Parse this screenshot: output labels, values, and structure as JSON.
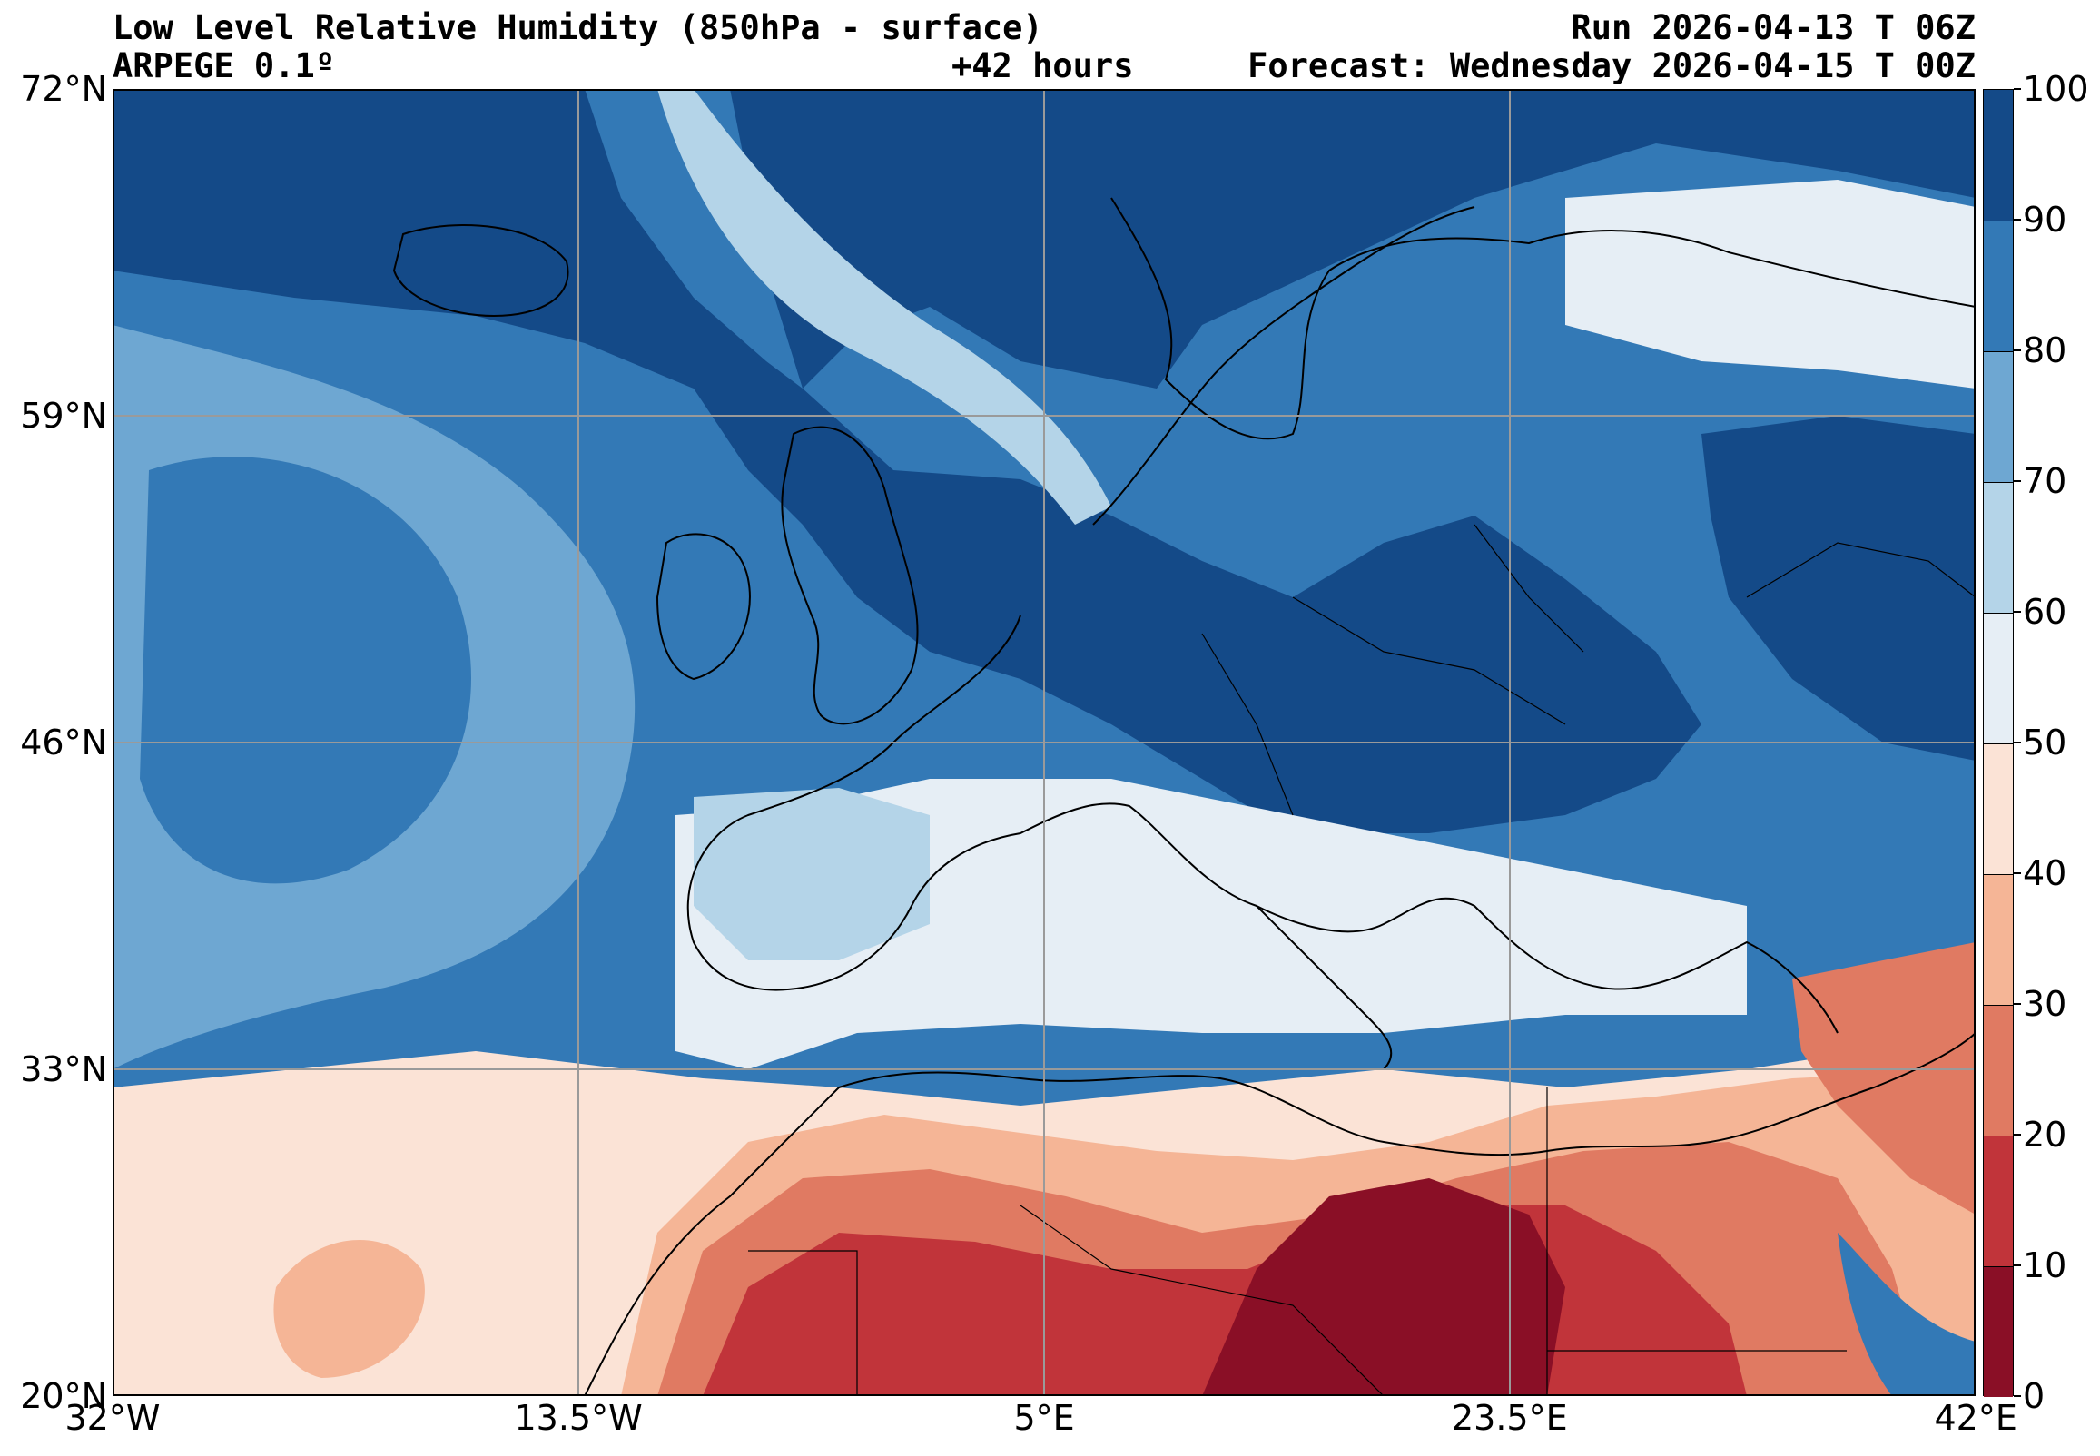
{
  "header": {
    "title_line1": "Low Level Relative Humidity (850hPa - surface)",
    "title_line2": "ARPEGE 0.1º",
    "run": "Run 2026-04-13 T 06Z",
    "lead": "+42 hours",
    "forecast": "Forecast: Wednesday 2026-04-15 T 00Z"
  },
  "axes": {
    "lat_labels": [
      "72°N",
      "59°N",
      "46°N",
      "33°N",
      "20°N"
    ],
    "lon_labels": [
      "32°W",
      "13.5°W",
      "5°E",
      "23.5°E",
      "42°E"
    ],
    "lat_values": [
      72,
      59,
      46,
      33,
      20
    ],
    "lon_values": [
      -32,
      -13.5,
      5,
      23.5,
      42
    ],
    "extent": {
      "lon_min": -32,
      "lon_max": 42,
      "lat_min": 20,
      "lat_max": 72
    },
    "grid": true
  },
  "colorbar": {
    "tick_labels": [
      "0",
      "10",
      "20",
      "30",
      "40",
      "50",
      "60",
      "70",
      "80",
      "90",
      "100"
    ],
    "bins": [
      {
        "min": 0,
        "max": 10,
        "color": "#8a0f26"
      },
      {
        "min": 10,
        "max": 20,
        "color": "#c1343a"
      },
      {
        "min": 20,
        "max": 30,
        "color": "#e07a62"
      },
      {
        "min": 30,
        "max": 40,
        "color": "#f5b596"
      },
      {
        "min": 40,
        "max": 50,
        "color": "#fbe3d6"
      },
      {
        "min": 50,
        "max": 60,
        "color": "#e6eef5"
      },
      {
        "min": 60,
        "max": 70,
        "color": "#b4d4e8"
      },
      {
        "min": 70,
        "max": 80,
        "color": "#6ea7d2"
      },
      {
        "min": 80,
        "max": 90,
        "color": "#3379b6"
      },
      {
        "min": 90,
        "max": 100,
        "color": "#144a88"
      }
    ]
  }
}
